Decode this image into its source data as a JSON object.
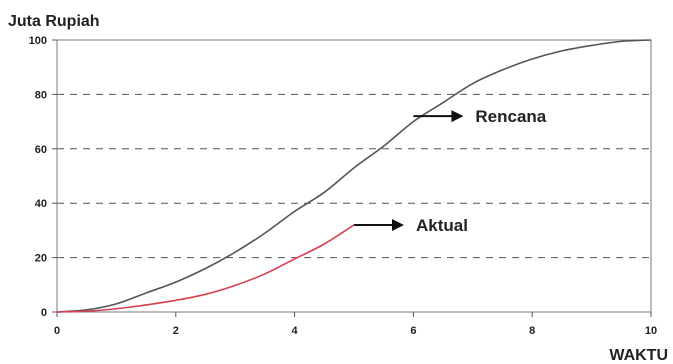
{
  "chart_data": {
    "type": "line",
    "xlabel": "WAKTU",
    "ylabel": "Juta Rupiah",
    "xlim": [
      0,
      10
    ],
    "ylim": [
      0,
      100
    ],
    "x_ticks": [
      "0",
      "2",
      "4",
      "6",
      "8",
      "10"
    ],
    "y_ticks": [
      "0",
      "20",
      "40",
      "60",
      "80",
      "100"
    ],
    "grid": "horizontal dashed",
    "series": [
      {
        "name": "Rencana",
        "color": "#555555",
        "x": [
          0,
          0.5,
          1,
          1.5,
          2,
          2.5,
          3,
          3.5,
          4,
          4.5,
          5,
          5.5,
          6,
          6.5,
          7,
          7.5,
          8,
          8.5,
          9,
          9.5,
          10
        ],
        "y": [
          0,
          0.8,
          3,
          7,
          11,
          16,
          22,
          29,
          37,
          44,
          53,
          61,
          70,
          77,
          84,
          89,
          93,
          96,
          98,
          99.5,
          100
        ]
      },
      {
        "name": "Aktual",
        "color": "#d9404f",
        "x": [
          0,
          0.5,
          1,
          1.5,
          2,
          2.5,
          3,
          3.5,
          4,
          4.5,
          5
        ],
        "y": [
          0,
          0.3,
          1.2,
          2.6,
          4.3,
          6.5,
          9.8,
          14,
          19.5,
          25,
          32
        ]
      }
    ],
    "annotations": [
      {
        "text": "Rencana",
        "at_series": "Rencana",
        "x": 6,
        "y": 72
      },
      {
        "text": "Aktual",
        "at_series": "Aktual",
        "x": 5,
        "y": 32
      }
    ]
  }
}
